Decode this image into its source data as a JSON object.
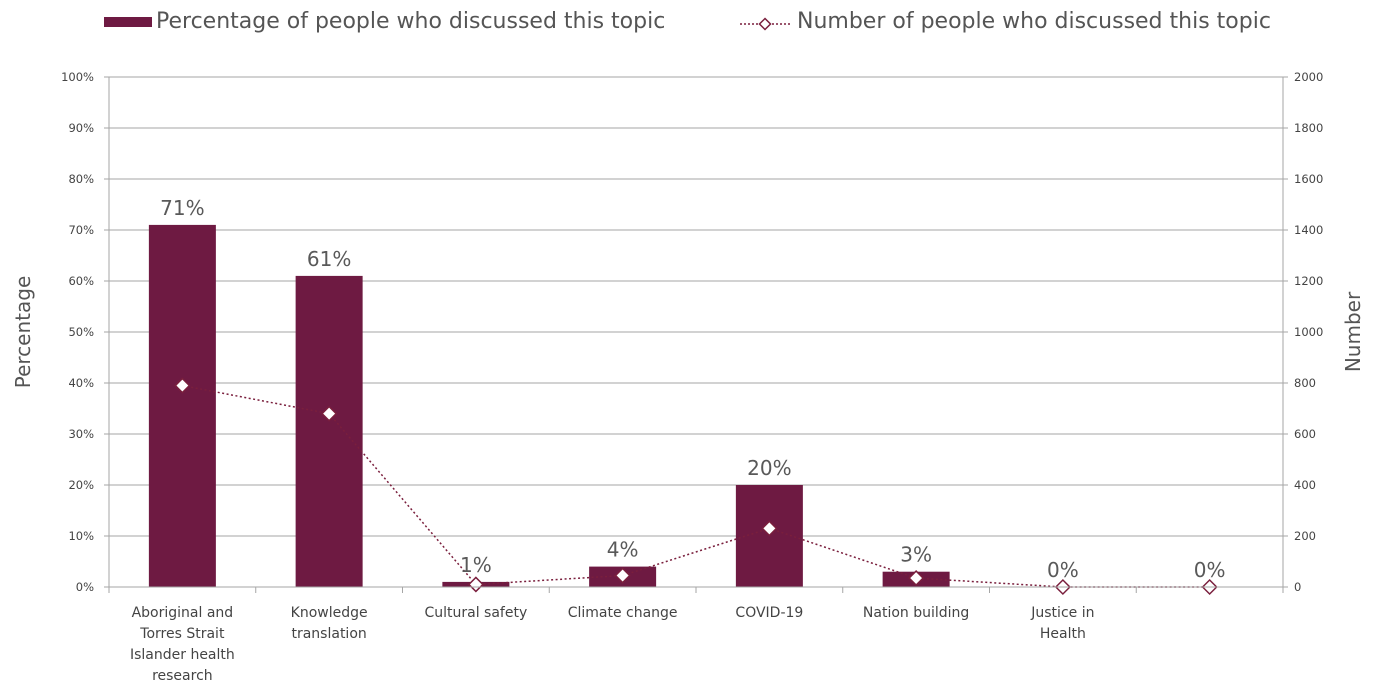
{
  "chart_data": {
    "type": "bar",
    "categories": [
      "Aboriginal and Torres Strait Islander health research",
      "Knowledge translation",
      "Cultural safety",
      "Climate change",
      "COVID-19",
      "Nation building",
      "Justice in Health",
      ""
    ],
    "category_lines": [
      [
        "Aboriginal and",
        "Torres Strait",
        "Islander health",
        "research"
      ],
      [
        "Knowledge",
        "translation"
      ],
      [
        "Cultural safety"
      ],
      [
        "Climate change"
      ],
      [
        "COVID-19"
      ],
      [
        "Nation building"
      ],
      [
        "Justice in",
        "Health"
      ],
      []
    ],
    "series": [
      {
        "name": "Percentage of people who discussed this topic",
        "type": "bar",
        "axis": "left",
        "values": [
          71,
          61,
          1,
          4,
          20,
          3,
          0,
          0
        ],
        "labels": [
          "71%",
          "61%",
          "1%",
          "4%",
          "20%",
          "3%",
          "0%",
          "0%"
        ],
        "color": "#6e1a42"
      },
      {
        "name": "Number of people who discussed this topic",
        "type": "line",
        "axis": "right",
        "values": [
          790,
          680,
          10,
          45,
          230,
          35,
          0,
          0
        ],
        "color": "#7a1f3d"
      }
    ],
    "ylabel": "Percentage",
    "y2label": "Number",
    "ylim": [
      0,
      100
    ],
    "y2lim": [
      0,
      2000
    ],
    "yticks": [
      "0%",
      "10%",
      "20%",
      "30%",
      "40%",
      "50%",
      "60%",
      "70%",
      "80%",
      "90%",
      "100%"
    ],
    "y2ticks": [
      "0",
      "200",
      "400",
      "600",
      "800",
      "1000",
      "1200",
      "1400",
      "1600",
      "1800",
      "2000"
    ],
    "grid": true,
    "legend": "top"
  }
}
